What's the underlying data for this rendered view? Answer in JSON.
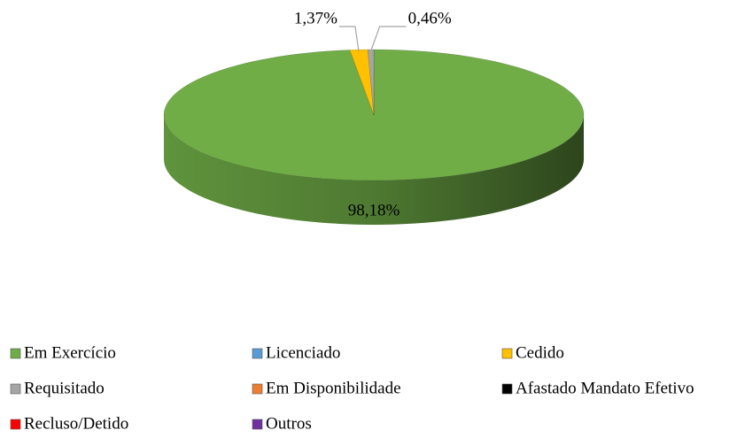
{
  "chart_data": {
    "type": "pie",
    "categories": [
      "Em Exercício",
      "Licenciado",
      "Cedido",
      "Requisitado",
      "Em Disponibilidade",
      "Afastado Mandato Efetivo",
      "Recluso/Detido",
      "Outros"
    ],
    "values": [
      98.18,
      0,
      1.37,
      0.46,
      0,
      0,
      0,
      0
    ],
    "value_labels": [
      "98,18%",
      null,
      "1,37%",
      "0,46%",
      null,
      null,
      null,
      null
    ],
    "colors": [
      "#70ad47",
      "#5b9bd5",
      "#ffc000",
      "#a5a5a5",
      "#ed7d31",
      "#000000",
      "#ff0000",
      "#7030a0"
    ],
    "legend": "bottom"
  }
}
